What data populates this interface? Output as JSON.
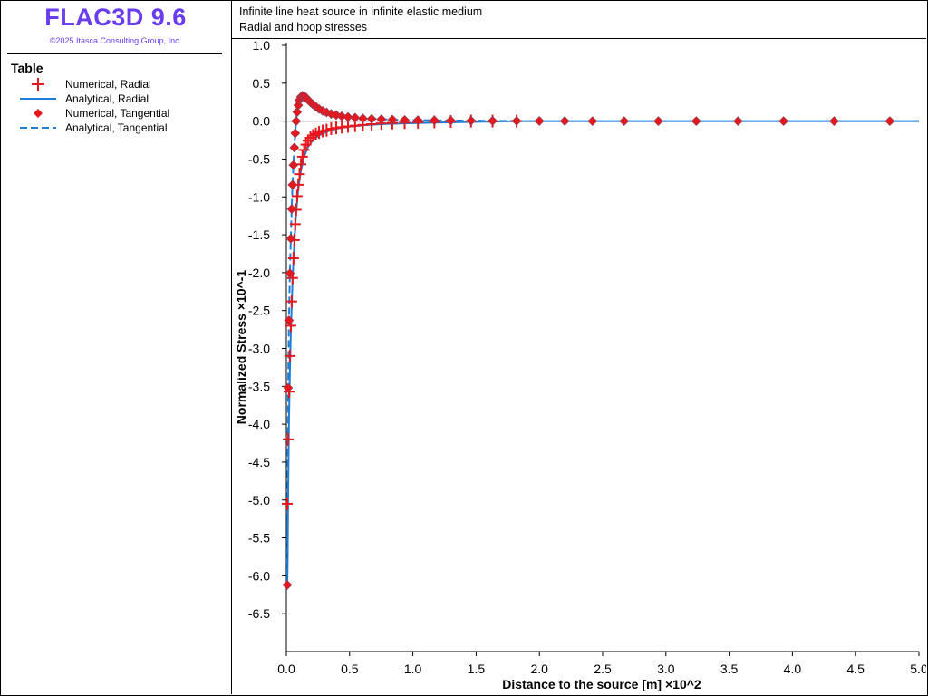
{
  "brand": {
    "title": "FLAC3D 9.6",
    "copyright": "©2025 Itasca Consulting Group, Inc."
  },
  "legend": {
    "title": "Table",
    "items": [
      {
        "label": "Numerical, Radial",
        "marker": "plus-icon",
        "color": "#e8171b"
      },
      {
        "label": "Analytical, Radial",
        "marker": "solid-line-icon",
        "color": "#1f7fd8"
      },
      {
        "label": "Numerical, Tangential",
        "marker": "diamond-icon",
        "color": "#e8171b"
      },
      {
        "label": "Analytical, Tangential",
        "marker": "dashed-line-icon",
        "color": "#1f7fd8"
      }
    ]
  },
  "plot": {
    "title": "Infinite line heat source in infinite elastic medium",
    "subtitle": "Radial and hoop stresses"
  },
  "chart_data": {
    "type": "line",
    "title": "Infinite line heat source in infinite elastic medium",
    "subtitle": "Radial and hoop stresses",
    "xlabel": "Distance to the source [m] ×10^2",
    "ylabel": "Normalized Stress ×10^-1",
    "xlim": [
      0.0,
      5.0
    ],
    "ylim": [
      -7.0,
      1.0
    ],
    "xticks": [
      "0.0",
      "0.5",
      "1.0",
      "1.5",
      "2.0",
      "2.5",
      "3.0",
      "3.5",
      "4.0",
      "4.5",
      "5.0"
    ],
    "yticks": [
      "1.0",
      "0.5",
      "0.0",
      "-0.5",
      "-1.0",
      "-1.5",
      "-2.0",
      "-2.5",
      "-3.0",
      "-3.5",
      "-4.0",
      "-4.5",
      "-5.0",
      "-5.5",
      "-6.0",
      "-6.5"
    ],
    "colors": {
      "numerical": "#e8171b",
      "analytical": "#1f7fd8",
      "zero_line": "#000000"
    },
    "series": [
      {
        "name": "Numerical, Radial",
        "style": "plus",
        "x": [
          0.007,
          0.014,
          0.021,
          0.028,
          0.035,
          0.042,
          0.049,
          0.056,
          0.063,
          0.07,
          0.077,
          0.085,
          0.094,
          0.104,
          0.115,
          0.127,
          0.14,
          0.155,
          0.171,
          0.19,
          0.21,
          0.233,
          0.258,
          0.287,
          0.318,
          0.354,
          0.394,
          0.438,
          0.487,
          0.543,
          0.605,
          0.674,
          0.751,
          0.838,
          0.935,
          1.04,
          1.17,
          1.3,
          1.46,
          1.63,
          1.82
        ],
        "y": [
          -5.05,
          -4.2,
          -3.57,
          -3.1,
          -2.7,
          -2.38,
          -2.07,
          -1.81,
          -1.57,
          -1.36,
          -1.17,
          -0.99,
          -0.84,
          -0.7,
          -0.57,
          -0.47,
          -0.38,
          -0.31,
          -0.26,
          -0.22,
          -0.19,
          -0.17,
          -0.15,
          -0.13,
          -0.12,
          -0.1,
          -0.09,
          -0.08,
          -0.07,
          -0.06,
          -0.05,
          -0.04,
          -0.03,
          -0.025,
          -0.02,
          -0.015,
          -0.01,
          -0.005,
          0.0,
          0.0,
          0.0
        ]
      },
      {
        "name": "Analytical, Radial",
        "style": "solid",
        "x": [
          0.007,
          0.01,
          0.014,
          0.021,
          0.028,
          0.035,
          0.049,
          0.063,
          0.077,
          0.094,
          0.115,
          0.14,
          0.171,
          0.21,
          0.258,
          0.318,
          0.394,
          0.487,
          0.605,
          0.751,
          0.935,
          1.17,
          1.46,
          1.82,
          2.2,
          3.0,
          4.0,
          5.0
        ],
        "y": [
          -6.15,
          -5.8,
          -4.9,
          -3.95,
          -3.3,
          -2.8,
          -2.1,
          -1.6,
          -1.22,
          -0.9,
          -0.65,
          -0.47,
          -0.34,
          -0.25,
          -0.19,
          -0.14,
          -0.1,
          -0.075,
          -0.055,
          -0.04,
          -0.03,
          -0.02,
          -0.01,
          0.0,
          0.0,
          0.0,
          0.0,
          0.0
        ]
      },
      {
        "name": "Numerical, Tangential",
        "style": "diamond",
        "x": [
          0.007,
          0.014,
          0.021,
          0.028,
          0.035,
          0.042,
          0.049,
          0.056,
          0.063,
          0.07,
          0.077,
          0.085,
          0.094,
          0.104,
          0.115,
          0.127,
          0.14,
          0.155,
          0.171,
          0.19,
          0.21,
          0.233,
          0.258,
          0.287,
          0.318,
          0.354,
          0.394,
          0.438,
          0.487,
          0.543,
          0.605,
          0.674,
          0.751,
          0.838,
          0.935,
          1.04,
          1.17,
          1.3,
          1.46,
          1.63,
          1.82,
          2.0,
          2.2,
          2.42,
          2.67,
          2.94,
          3.24,
          3.57,
          3.93,
          4.33,
          4.77
        ],
        "y": [
          -6.12,
          -3.52,
          -2.63,
          -2.01,
          -1.55,
          -1.16,
          -0.84,
          -0.58,
          -0.35,
          -0.16,
          0.0,
          0.12,
          0.21,
          0.28,
          0.32,
          0.335,
          0.33,
          0.31,
          0.28,
          0.25,
          0.22,
          0.19,
          0.16,
          0.135,
          0.115,
          0.095,
          0.08,
          0.065,
          0.055,
          0.045,
          0.035,
          0.03,
          0.025,
          0.02,
          0.015,
          0.012,
          0.01,
          0.008,
          0.006,
          0.004,
          0.003,
          0.002,
          0.001,
          0.0,
          0.0,
          0.0,
          0.0,
          0.0,
          0.0,
          0.0,
          0.0
        ]
      },
      {
        "name": "Analytical, Tangential",
        "style": "dashed",
        "x": [
          0.007,
          0.014,
          0.021,
          0.028,
          0.035,
          0.042,
          0.049,
          0.056,
          0.063,
          0.07,
          0.077,
          0.085,
          0.094,
          0.104,
          0.115,
          0.127,
          0.14,
          0.155,
          0.171,
          0.19,
          0.21,
          0.233,
          0.258,
          0.287,
          0.318,
          0.354,
          0.394,
          0.438,
          0.487,
          0.543,
          0.605,
          0.674,
          0.751,
          0.838,
          0.935,
          1.04,
          1.17,
          1.3,
          1.46,
          1.63,
          1.82
        ],
        "y": [
          -6.0,
          -3.5,
          -2.6,
          -2.0,
          -1.54,
          -1.15,
          -0.83,
          -0.57,
          -0.34,
          -0.15,
          0.0,
          0.12,
          0.21,
          0.28,
          0.32,
          0.335,
          0.33,
          0.31,
          0.28,
          0.25,
          0.22,
          0.19,
          0.16,
          0.135,
          0.115,
          0.095,
          0.08,
          0.065,
          0.055,
          0.045,
          0.035,
          0.03,
          0.025,
          0.02,
          0.015,
          0.012,
          0.01,
          0.008,
          0.006,
          0.004,
          0.003
        ]
      }
    ]
  }
}
